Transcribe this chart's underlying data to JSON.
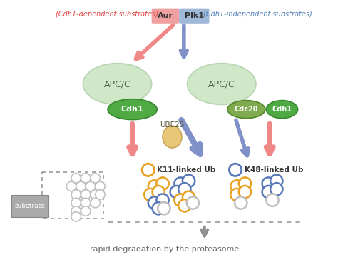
{
  "fig_width": 4.74,
  "fig_height": 3.64,
  "dpi": 100,
  "bg_color": "#ffffff",
  "top_label_left": "(Cdh1-dependent substrates)",
  "top_label_right": "(Cdh1-independent substrates)",
  "top_label_left_color": "#e04040",
  "top_label_right_color": "#5080b8",
  "aur_label": "Aur",
  "plk1_label": "Plk1",
  "aur_bg": "#f0a0a0",
  "plk1_bg": "#a0b8d8",
  "apcc_light_color": "#d0e8c8",
  "apcc_light_edge": "#b8d4b0",
  "cdh1_color": "#50aa44",
  "cdh1_edge": "#388830",
  "cdc20_color": "#80aa50",
  "cdc20_edge": "#508828",
  "ube2s_color": "#e8c878",
  "ube2s_edge": "#c8a858",
  "arrow_pink": "#f08888",
  "arrow_blue": "#8090c8",
  "arrow_gray": "#909090",
  "k11_color": "#e8a020",
  "k48_color": "#5878b8",
  "circle_gray": "#c0c0c0",
  "bottom_text": "rapid degradation by the proteasome",
  "bottom_text_color": "#666666"
}
